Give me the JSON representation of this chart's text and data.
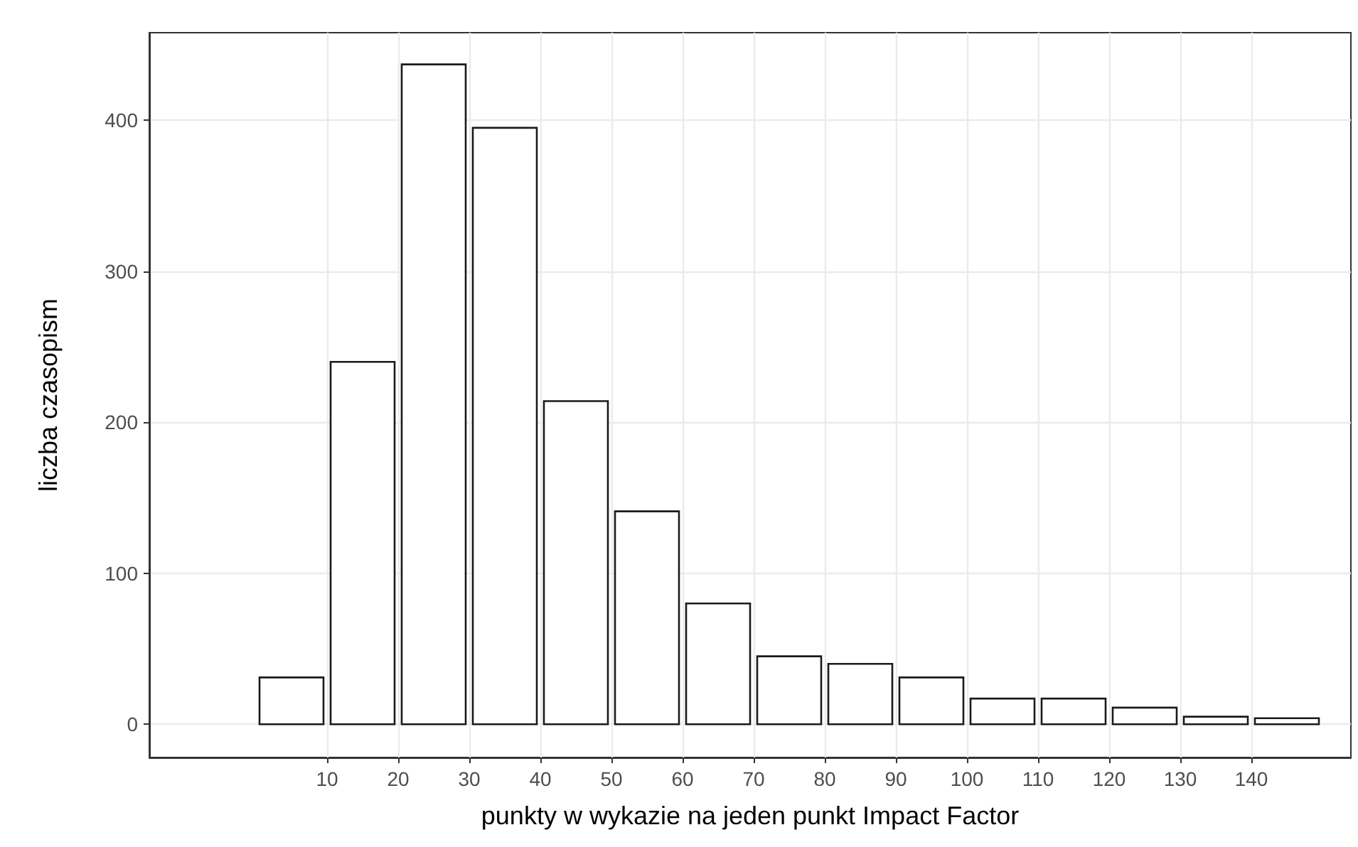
{
  "chart_data": {
    "type": "histogram",
    "xlabel": "punkty w wykazie na jeden punkt Impact Factor",
    "ylabel": "liczba czasopism",
    "bins": [
      0,
      10,
      20,
      30,
      40,
      50,
      60,
      70,
      80,
      90,
      100,
      110,
      120,
      130,
      140,
      150
    ],
    "values": [
      31,
      240,
      437,
      395,
      214,
      141,
      80,
      45,
      40,
      31,
      17,
      17,
      11,
      5,
      4
    ],
    "color": "#ffffff",
    "xlim": [
      -15,
      154
    ],
    "xticks": [
      10,
      20,
      30,
      40,
      50,
      60,
      70,
      80,
      90,
      100,
      110,
      120,
      130,
      140
    ],
    "ylim": [
      -22,
      458
    ],
    "yticks": [
      0,
      100,
      200,
      300,
      400
    ],
    "grid": true
  }
}
